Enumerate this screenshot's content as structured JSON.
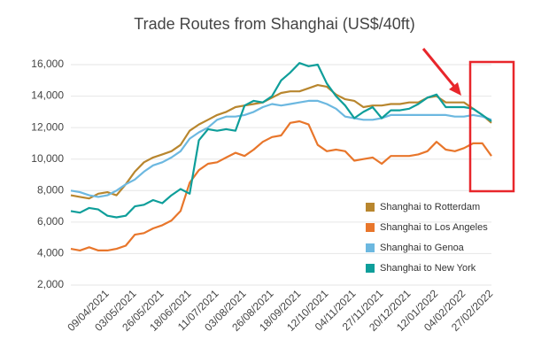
{
  "chart_data": {
    "type": "line",
    "title": "Trade Routes from Shanghai (US$/40ft)",
    "categories": [
      null,
      null,
      null,
      null,
      "09/04/2021",
      null,
      null,
      "03/05/2021",
      null,
      null,
      "26/05/2021",
      null,
      null,
      "18/06/2021",
      null,
      null,
      "11/07/2021",
      null,
      null,
      "03/08/2021",
      null,
      null,
      "26/08/2021",
      null,
      null,
      "18/09/2021",
      null,
      null,
      "12/10/2021",
      null,
      null,
      "04/11/2021",
      null,
      null,
      "27/11/2021",
      null,
      null,
      "20/12/2021",
      null,
      null,
      "12/01/2022",
      null,
      null,
      "04/02/2022",
      null,
      null,
      "27/02/2022"
    ],
    "series": [
      {
        "name": "Shanghai to Rotterdam",
        "color": "#b8862e",
        "values": [
          7700,
          7600,
          7500,
          7800,
          7900,
          7700,
          8400,
          9200,
          9800,
          10100,
          10300,
          10500,
          10900,
          11800,
          12200,
          12500,
          12800,
          13000,
          13300,
          13400,
          13500,
          13600,
          13900,
          14200,
          14300,
          14300,
          14500,
          14700,
          14600,
          14100,
          13800,
          13700,
          13300,
          13400,
          13400,
          13500,
          13500,
          13600,
          13600,
          13900,
          14000,
          13600,
          13600,
          13600,
          13200,
          12800,
          12300
        ]
      },
      {
        "name": "Shanghai to Los Angeles",
        "color": "#e8762b",
        "values": [
          4300,
          4200,
          4400,
          4200,
          4200,
          4300,
          4500,
          5200,
          5300,
          5600,
          5800,
          6100,
          6700,
          8500,
          9300,
          9700,
          9800,
          10100,
          10400,
          10200,
          10600,
          11100,
          11400,
          11500,
          12300,
          12400,
          12200,
          10900,
          10500,
          10600,
          10500,
          9900,
          10000,
          10100,
          9700,
          10200,
          10200,
          10200,
          10300,
          10500,
          11100,
          10600,
          10500,
          10700,
          11000,
          11000,
          10200
        ]
      },
      {
        "name": "Shanghai to Genoa",
        "color": "#6cb8e0",
        "values": [
          8000,
          7900,
          7700,
          7600,
          7700,
          8000,
          8400,
          8700,
          9200,
          9600,
          9800,
          10100,
          10500,
          11300,
          11700,
          12000,
          12500,
          12700,
          12700,
          12800,
          13000,
          13300,
          13500,
          13400,
          13500,
          13600,
          13700,
          13700,
          13500,
          13200,
          12700,
          12600,
          12500,
          12500,
          12600,
          12800,
          12800,
          12800,
          12800,
          12800,
          12800,
          12800,
          12700,
          12700,
          12800,
          12700,
          12500
        ]
      },
      {
        "name": "Shanghai to New York",
        "color": "#0e9e9a",
        "values": [
          6700,
          6600,
          6900,
          6800,
          6400,
          6300,
          6400,
          7000,
          7100,
          7400,
          7200,
          7700,
          8100,
          7800,
          11200,
          11900,
          11800,
          11900,
          11800,
          13400,
          13700,
          13600,
          14000,
          15000,
          15500,
          16100,
          15900,
          16000,
          14800,
          14000,
          13400,
          12600,
          13000,
          13300,
          12600,
          13100,
          13100,
          13200,
          13500,
          13900,
          14100,
          13300,
          13300,
          13300,
          13200,
          12800,
          12400
        ]
      }
    ],
    "ylim": [
      2000,
      16000
    ],
    "yticks": [
      {
        "value": 2000,
        "label": "2,000"
      },
      {
        "value": 4000,
        "label": "4,000"
      },
      {
        "value": 6000,
        "label": "6,000"
      },
      {
        "value": 8000,
        "label": "8,000"
      },
      {
        "value": 10000,
        "label": "10,000"
      },
      {
        "value": 12000,
        "label": "12,000"
      },
      {
        "value": 14000,
        "label": "14,000"
      },
      {
        "value": 16000,
        "label": "16,000"
      }
    ],
    "grid": true,
    "legend": "lower right"
  }
}
